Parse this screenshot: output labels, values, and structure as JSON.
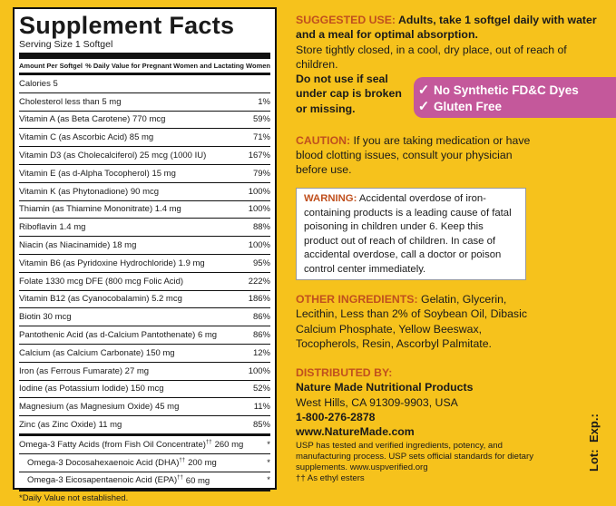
{
  "facts": {
    "title": "Supplement Facts",
    "serving": "Serving Size 1 Softgel",
    "header_left": "Amount Per Softgel",
    "header_right": "% Daily Value for Pregnant Women and Lactating Women",
    "rows": [
      {
        "name": "Calories  5",
        "dv": ""
      },
      {
        "name": "Cholesterol  less than 5 mg",
        "dv": "1%"
      },
      {
        "name": "Vitamin A (as Beta Carotene)  770 mcg",
        "dv": "59%"
      },
      {
        "name": "Vitamin C (as Ascorbic Acid)  85 mg",
        "dv": "71%"
      },
      {
        "name": "Vitamin D3 (as Cholecalciferol)  25 mcg (1000 IU)",
        "dv": "167%"
      },
      {
        "name": "Vitamin E (as d-Alpha Tocopherol)  15 mg",
        "dv": "79%"
      },
      {
        "name": "Vitamin K (as Phytonadione)  90 mcg",
        "dv": "100%"
      },
      {
        "name": "Thiamin (as Thiamine Mononitrate)  1.4 mg",
        "dv": "100%"
      },
      {
        "name": "Riboflavin  1.4 mg",
        "dv": "88%"
      },
      {
        "name": "Niacin (as Niacinamide)  18 mg",
        "dv": "100%"
      },
      {
        "name": "Vitamin B6 (as Pyridoxine Hydrochloride)  1.9 mg",
        "dv": "95%"
      },
      {
        "name": "Folate  1330 mcg DFE (800 mcg Folic Acid)",
        "dv": "222%"
      },
      {
        "name": "Vitamin B12 (as Cyanocobalamin)  5.2 mcg",
        "dv": "186%"
      },
      {
        "name": "Biotin  30 mcg",
        "dv": "86%"
      },
      {
        "name": "Pantothenic Acid (as d-Calcium Pantothenate)  6 mg",
        "dv": "86%"
      },
      {
        "name": "Calcium (as Calcium Carbonate)  150 mg",
        "dv": "12%"
      },
      {
        "name": "Iron (as Ferrous Fumarate)  27 mg",
        "dv": "100%"
      },
      {
        "name": "Iodine (as Potassium Iodide)  150 mcg",
        "dv": "52%"
      },
      {
        "name": "Magnesium (as Magnesium Oxide)  45 mg",
        "dv": "11%"
      },
      {
        "name": "Zinc (as Zinc Oxide)  11 mg",
        "dv": "85%"
      }
    ],
    "omega": [
      {
        "name": "Omega-3 Fatty Acids (from Fish Oil Concentrate)",
        "mark": "††",
        "amount": "260 mg",
        "dv": "*"
      },
      {
        "name": "Omega-3 Docosahexaenoic Acid (DHA)",
        "mark": "††",
        "amount": "200 mg",
        "dv": "*"
      },
      {
        "name": "Omega-3 Eicosapentaenoic Acid (EPA)",
        "mark": "††",
        "amount": "60 mg",
        "dv": "*"
      }
    ],
    "footnote": "*Daily Value not established."
  },
  "suggested": {
    "label": "SUGGESTED USE:",
    "text": " Adults, take 1 softgel daily with water and a meal for optimal absorption.",
    "storage": "Store tightly closed, in a cool, dry place, out of reach of children.",
    "seal": "Do not use if seal under cap is broken or missing."
  },
  "badge": {
    "line1": "No Synthetic FD&C Dyes",
    "line2": "Gluten Free"
  },
  "caution": {
    "label": "CAUTION:",
    "text": " If you are taking medication or have blood clotting issues, consult your physician before use."
  },
  "warning": {
    "label": "WARNING:",
    "text": " Accidental overdose of iron-containing products is a leading cause of fatal poisoning in children under 6. Keep this product out of reach of children. In case of accidental overdose, call a doctor or poison control center immediately."
  },
  "ingredients": {
    "label": "OTHER INGREDIENTS:",
    "text": " Gelatin, Glycerin, Lecithin, Less than 2% of Soybean Oil, Dibasic Calcium Phosphate, Yellow Beeswax, Tocopherols, Resin, Ascorbyl Palmitate."
  },
  "distributor": {
    "label": "DISTRIBUTED BY:",
    "name": "Nature Made Nutritional Products",
    "address": "West Hills, CA 91309-9903, USA",
    "phone": "1-800-276-2878",
    "web": "www.NatureMade.com",
    "usp": "USP has tested and verified ingredients, potency, and manufacturing process. USP sets official standards for dietary supplements. www.uspverified.org",
    "ethyl": "†† As ethyl esters"
  },
  "lot": {
    "lot": "Lot:",
    "exp": "Exp.:"
  },
  "colors": {
    "background": "#f6c21c",
    "accent": "#c0501e",
    "badge": "#c4589b"
  }
}
